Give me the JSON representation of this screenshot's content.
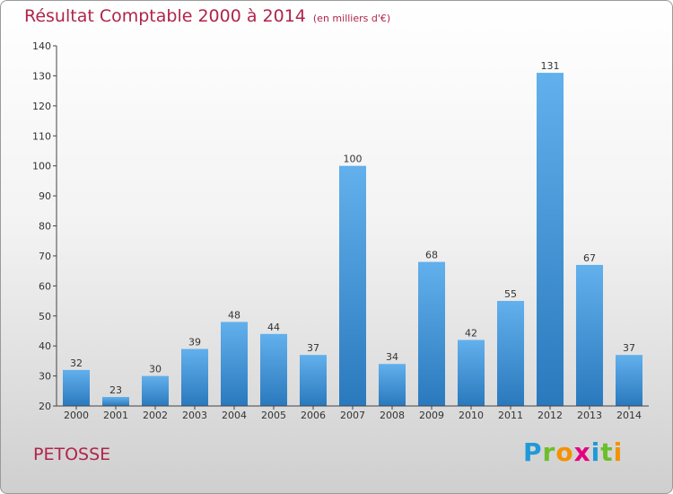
{
  "header": {
    "title": "Résultat Comptable 2000 à 2014",
    "subtitle": "(en milliers d'€)"
  },
  "footer": {
    "commune": "PETOSSE",
    "logo": {
      "letters": [
        "P",
        "r",
        "o",
        "x",
        "i",
        "t",
        "i"
      ],
      "colors": [
        "#1f9ad8",
        "#6cbf2a",
        "#f39200",
        "#e6007e",
        "#1f9ad8",
        "#6cbf2a",
        "#f39200"
      ]
    }
  },
  "chart_data": {
    "type": "bar",
    "categories": [
      "2000",
      "2001",
      "2002",
      "2003",
      "2004",
      "2005",
      "2006",
      "2007",
      "2008",
      "2009",
      "2010",
      "2011",
      "2012",
      "2013",
      "2014"
    ],
    "values": [
      32,
      23,
      30,
      39,
      48,
      44,
      37,
      100,
      34,
      68,
      42,
      55,
      131,
      67,
      37
    ],
    "title": "Résultat Comptable 2000 à 2014",
    "xlabel": "",
    "ylabel": "",
    "ylim": [
      20,
      140
    ],
    "yticks": [
      20,
      30,
      40,
      50,
      60,
      70,
      80,
      90,
      100,
      110,
      120,
      130,
      140
    ],
    "bar_color": "#3d96d8",
    "grid": false
  }
}
